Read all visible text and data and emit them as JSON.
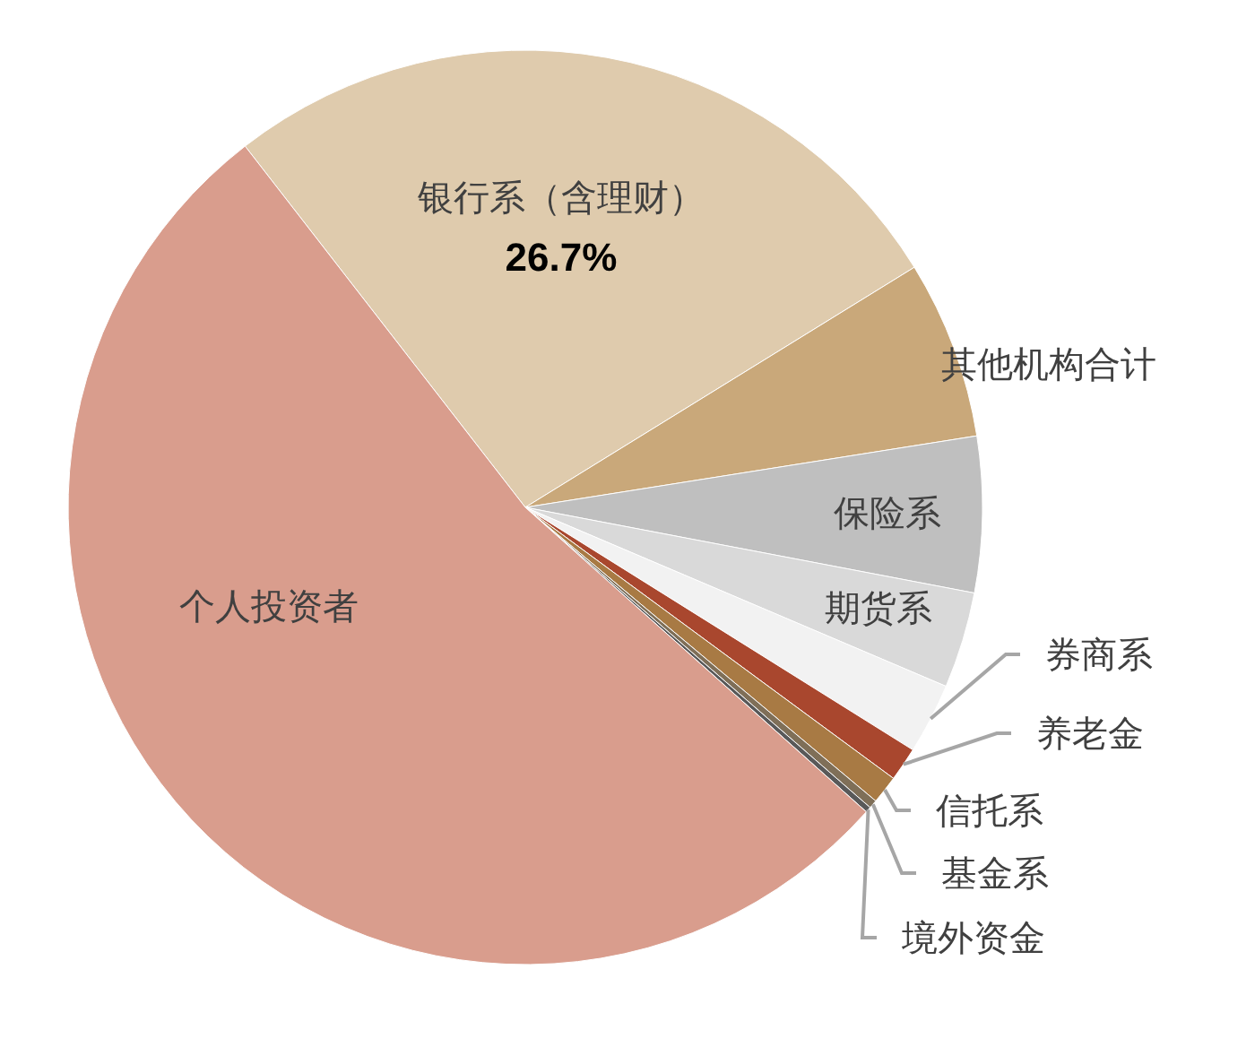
{
  "chart_data": {
    "type": "pie",
    "categories": [
      "银行系（含理财）",
      "其他机构合计",
      "保险系",
      "期货系",
      "券商系",
      "养老金",
      "信托系",
      "基金系",
      "境外资金",
      "个人投资者"
    ],
    "values": [
      26.7,
      6.3,
      5.5,
      3.4,
      2.5,
      1.2,
      1.0,
      0.3,
      0.2,
      52.9
    ],
    "colors": [
      "#dfcbad",
      "#c9a87a",
      "#bfbfbf",
      "#d9d9d9",
      "#f2f2f2",
      "#a9472e",
      "#a87a44",
      "#7f6f58",
      "#595959",
      "#d99d8d"
    ],
    "value_labels": [
      "26.7%",
      null,
      null,
      null,
      null,
      null,
      null,
      null,
      null,
      null
    ]
  }
}
